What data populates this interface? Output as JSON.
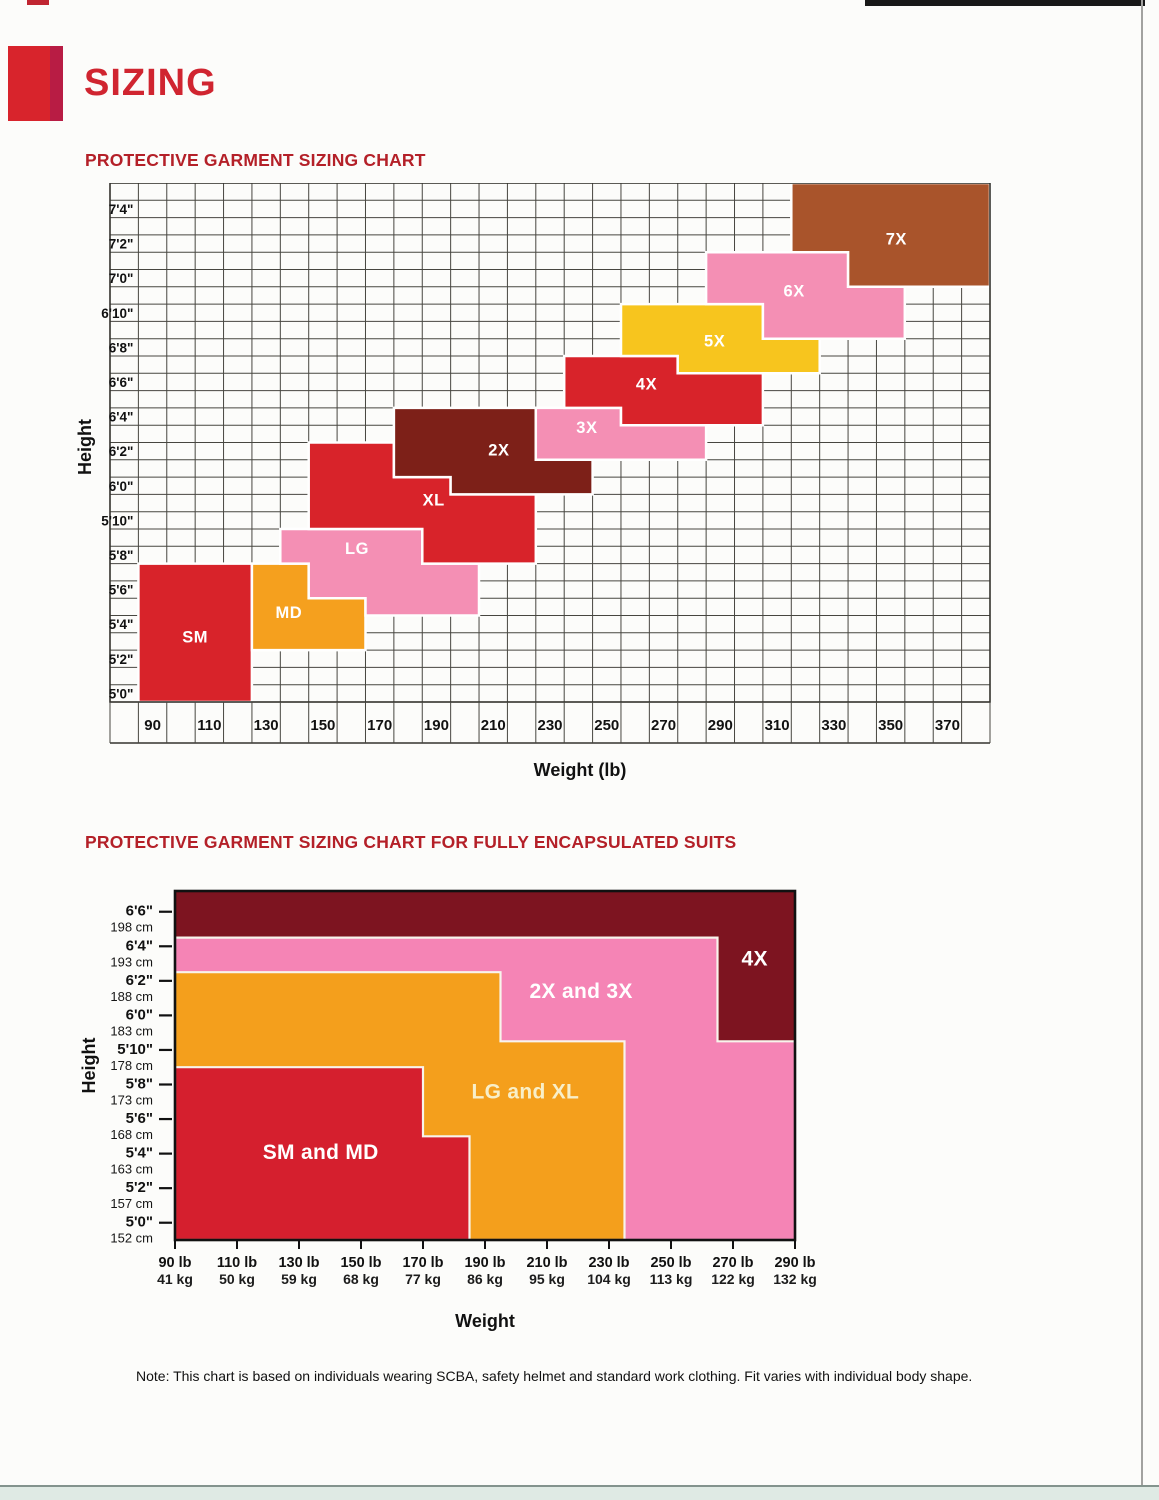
{
  "page": {
    "title": "SIZING",
    "title_color": "#d02530",
    "heading_color": "#b42028",
    "bg": "#fcfcfa",
    "top_strip_color": "#181818",
    "right_edge_line_color": "#a2a2a0",
    "bottom_band_color": "#dfeae4",
    "bottom_band_line_color": "#83938d",
    "logo_main_color": "#d8242c",
    "logo_stripe_color": "#b81c44"
  },
  "chart_data": [
    {
      "type": "area",
      "title": "PROTECTIVE GARMENT SIZING CHART",
      "xlabel": "Weight (lb)",
      "ylabel": "Height",
      "x_range": [
        75,
        385
      ],
      "x_grid_step": 10,
      "y_range": [
        59.5,
        89.5
      ],
      "y_grid_step": 1,
      "grid": true,
      "grid_color": "#474640",
      "border_color": "#34332e",
      "x_ticks": [
        {
          "v": 90,
          "label": "90"
        },
        {
          "v": 110,
          "label": "110"
        },
        {
          "v": 130,
          "label": "130"
        },
        {
          "v": 150,
          "label": "150"
        },
        {
          "v": 170,
          "label": "170"
        },
        {
          "v": 190,
          "label": "190"
        },
        {
          "v": 210,
          "label": "210"
        },
        {
          "v": 230,
          "label": "230"
        },
        {
          "v": 250,
          "label": "250"
        },
        {
          "v": 270,
          "label": "270"
        },
        {
          "v": 290,
          "label": "290"
        },
        {
          "v": 310,
          "label": "310"
        },
        {
          "v": 330,
          "label": "330"
        },
        {
          "v": 350,
          "label": "350"
        },
        {
          "v": 370,
          "label": "370"
        }
      ],
      "y_ticks": [
        {
          "v": 60,
          "label": "5'0\""
        },
        {
          "v": 62,
          "label": "5'2\""
        },
        {
          "v": 64,
          "label": "5'4\""
        },
        {
          "v": 66,
          "label": "5'6\""
        },
        {
          "v": 68,
          "label": "5'8\""
        },
        {
          "v": 70,
          "label": "5'10\""
        },
        {
          "v": 72,
          "label": "6'0\""
        },
        {
          "v": 74,
          "label": "6'2\""
        },
        {
          "v": 76,
          "label": "6'4\""
        },
        {
          "v": 78,
          "label": "6'6\""
        },
        {
          "v": 80,
          "label": "6'8\""
        },
        {
          "v": 82,
          "label": "6'10\""
        },
        {
          "v": 84,
          "label": "7'0\""
        },
        {
          "v": 86,
          "label": "7'2\""
        },
        {
          "v": 88,
          "label": "7'4\""
        }
      ],
      "regions": [
        {
          "name": "SM",
          "color": "#d8232a",
          "label_color": "#ffffff",
          "label_at": [
            105,
            63.3
          ],
          "points": [
            [
              85,
              59.5
            ],
            [
              85,
              67.5
            ],
            [
              125,
              67.5
            ],
            [
              125,
              59.5
            ]
          ]
        },
        {
          "name": "MD",
          "color": "#f5a01e",
          "label_color": "#ffffff",
          "label_at": [
            138,
            64.7
          ],
          "points": [
            [
              125,
              62.5
            ],
            [
              125,
              67.5
            ],
            [
              145,
              67.5
            ],
            [
              145,
              65.5
            ],
            [
              165,
              65.5
            ],
            [
              165,
              62.5
            ]
          ]
        },
        {
          "name": "LG",
          "color": "#f48fb4",
          "label_color": "#ffffff",
          "label_at": [
            162,
            68.4
          ],
          "points": [
            [
              135,
              67.5
            ],
            [
              135,
              69.5
            ],
            [
              185,
              69.5
            ],
            [
              185,
              67.5
            ],
            [
              205,
              67.5
            ],
            [
              205,
              64.5
            ],
            [
              165,
              64.5
            ],
            [
              165,
              65.5
            ],
            [
              145,
              65.5
            ],
            [
              145,
              67.5
            ]
          ]
        },
        {
          "name": "XL",
          "color": "#d8232a",
          "label_color": "#ffffff",
          "label_at": [
            189,
            71.2
          ],
          "points": [
            [
              145,
              69.5
            ],
            [
              145,
              74.5
            ],
            [
              175,
              74.5
            ],
            [
              175,
              72.5
            ],
            [
              195,
              72.5
            ],
            [
              195,
              71.5
            ],
            [
              225,
              71.5
            ],
            [
              225,
              67.5
            ],
            [
              185,
              67.5
            ],
            [
              185,
              69.5
            ]
          ]
        },
        {
          "name": "2X",
          "color": "#7d2018",
          "label_color": "#ffffff",
          "label_at": [
            212,
            74.1
          ],
          "points": [
            [
              175,
              72.5
            ],
            [
              175,
              76.5
            ],
            [
              225,
              76.5
            ],
            [
              225,
              73.5
            ],
            [
              245,
              73.5
            ],
            [
              245,
              71.5
            ],
            [
              195,
              71.5
            ],
            [
              195,
              72.5
            ]
          ]
        },
        {
          "name": "3X",
          "color": "#f48fb4",
          "label_color": "#ffffff",
          "label_at": [
            243,
            75.4
          ],
          "points": [
            [
              225,
              73.5
            ],
            [
              225,
              76.5
            ],
            [
              255,
              76.5
            ],
            [
              255,
              75.5
            ],
            [
              285,
              75.5
            ],
            [
              285,
              73.5
            ]
          ]
        },
        {
          "name": "4X",
          "color": "#d8232a",
          "label_color": "#ffffff",
          "label_at": [
            264,
            77.9
          ],
          "points": [
            [
              235,
              76.5
            ],
            [
              235,
              79.5
            ],
            [
              275,
              79.5
            ],
            [
              275,
              78.5
            ],
            [
              305,
              78.5
            ],
            [
              305,
              75.5
            ],
            [
              255,
              75.5
            ],
            [
              255,
              76.5
            ]
          ]
        },
        {
          "name": "5X",
          "color": "#f7c51e",
          "label_color": "#ffffff",
          "label_at": [
            288,
            80.4
          ],
          "points": [
            [
              255,
              79.5
            ],
            [
              255,
              82.5
            ],
            [
              305,
              82.5
            ],
            [
              305,
              80.5
            ],
            [
              325,
              80.5
            ],
            [
              325,
              78.5
            ],
            [
              275,
              78.5
            ],
            [
              275,
              79.5
            ]
          ]
        },
        {
          "name": "6X",
          "color": "#f48fb4",
          "label_color": "#ffffff",
          "label_at": [
            316,
            83.3
          ],
          "points": [
            [
              285,
              82.5
            ],
            [
              285,
              85.5
            ],
            [
              335,
              85.5
            ],
            [
              335,
              83.5
            ],
            [
              355,
              83.5
            ],
            [
              355,
              80.5
            ],
            [
              305,
              80.5
            ],
            [
              305,
              82.5
            ]
          ]
        },
        {
          "name": "7X",
          "color": "#a9542b",
          "label_color": "#ffffff",
          "label_at": [
            352,
            86.3
          ],
          "points": [
            [
              315,
              85.5
            ],
            [
              315,
              89.5
            ],
            [
              385,
              89.5
            ],
            [
              385,
              83.5
            ],
            [
              335,
              83.5
            ],
            [
              335,
              85.5
            ]
          ]
        }
      ]
    },
    {
      "type": "area",
      "title": "PROTECTIVE GARMENT SIZING CHART FOR FULLY ENCAPSULATED SUITS",
      "xlabel": "Weight",
      "ylabel": "Height",
      "x_range": [
        90,
        290
      ],
      "y_range": [
        59,
        79.2
      ],
      "grid": false,
      "border_color": "#111111",
      "x_ticks": [
        {
          "v": 90,
          "lb": "90 lb",
          "kg": "41 kg"
        },
        {
          "v": 110,
          "lb": "110 lb",
          "kg": "50 kg"
        },
        {
          "v": 130,
          "lb": "130 lb",
          "kg": "59 kg"
        },
        {
          "v": 150,
          "lb": "150 lb",
          "kg": "68 kg"
        },
        {
          "v": 170,
          "lb": "170 lb",
          "kg": "77 kg"
        },
        {
          "v": 190,
          "lb": "190 lb",
          "kg": "86 kg"
        },
        {
          "v": 210,
          "lb": "210 lb",
          "kg": "95 kg"
        },
        {
          "v": 230,
          "lb": "230 lb",
          "kg": "104 kg"
        },
        {
          "v": 250,
          "lb": "250 lb",
          "kg": "113 kg"
        },
        {
          "v": 270,
          "lb": "270 lb",
          "kg": "122 kg"
        },
        {
          "v": 290,
          "lb": "290 lb",
          "kg": "132 kg"
        }
      ],
      "y_ticks": [
        {
          "v": 60,
          "ft": "5'0\"",
          "cm": "152 cm"
        },
        {
          "v": 62,
          "ft": "5'2\"",
          "cm": "157 cm"
        },
        {
          "v": 64,
          "ft": "5'4\"",
          "cm": "163 cm"
        },
        {
          "v": 66,
          "ft": "5'6\"",
          "cm": "168 cm"
        },
        {
          "v": 68,
          "ft": "5'8\"",
          "cm": "173 cm"
        },
        {
          "v": 70,
          "ft": "5'10\"",
          "cm": "178 cm"
        },
        {
          "v": 72,
          "ft": "6'0\"",
          "cm": "183 cm"
        },
        {
          "v": 74,
          "ft": "6'2\"",
          "cm": "188 cm"
        },
        {
          "v": 76,
          "ft": "6'4\"",
          "cm": "193 cm"
        },
        {
          "v": 78,
          "ft": "6'6\"",
          "cm": "198 cm"
        }
      ],
      "regions": [
        {
          "name": "4X",
          "color": "#7d1420",
          "label_color": "#ffffff",
          "label_at": [
            277,
            75.3
          ],
          "no_stroke": true,
          "points": [
            [
              90,
              59
            ],
            [
              90,
              79.2
            ],
            [
              290,
              79.2
            ],
            [
              290,
              59
            ]
          ]
        },
        {
          "name": "2X and 3X",
          "color": "#f584b5",
          "label_color": "#ffffff",
          "label_at": [
            221,
            73.4
          ],
          "points": [
            [
              90,
              59
            ],
            [
              90,
              76.5
            ],
            [
              265,
              76.5
            ],
            [
              265,
              70.5
            ],
            [
              290,
              70.5
            ],
            [
              290,
              59
            ]
          ]
        },
        {
          "name": "LG and XL",
          "color": "#f49f1c",
          "label_color": "#f8efc9",
          "label_at": [
            203,
            67.6
          ],
          "points": [
            [
              90,
              59
            ],
            [
              90,
              74.5
            ],
            [
              195,
              74.5
            ],
            [
              195,
              70.5
            ],
            [
              235,
              70.5
            ],
            [
              235,
              59
            ]
          ]
        },
        {
          "name": "SM and MD",
          "color": "#d51f2e",
          "label_color": "#ffffff",
          "label_at": [
            137,
            64.1
          ],
          "points": [
            [
              90,
              59
            ],
            [
              90,
              69
            ],
            [
              170,
              69
            ],
            [
              170,
              65
            ],
            [
              185,
              65
            ],
            [
              185,
              59
            ]
          ]
        }
      ],
      "note": "Note: This chart is based on individuals wearing SCBA, safety helmet and standard work clothing. Fit varies with individual body shape."
    }
  ]
}
